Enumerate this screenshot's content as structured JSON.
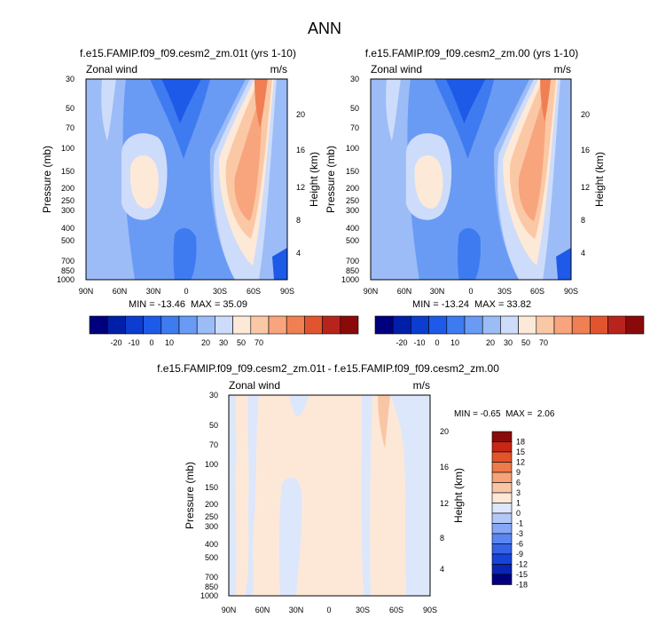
{
  "page_title": "ANN",
  "units": "m/s",
  "variable": "Zonal wind",
  "colors": {
    "abs_levels": [
      "#00007f",
      "#001fa8",
      "#0a3dd0",
      "#1e5ae8",
      "#3f7bf0",
      "#6a9bf4",
      "#9cbcf7",
      "#cddcfa",
      "#fde9d8",
      "#fbc8a6",
      "#f8a57e",
      "#f07f54",
      "#e0552f",
      "#b8241c",
      "#8a0a0a"
    ],
    "diff_levels": [
      "#00007f",
      "#0a24b5",
      "#1744d8",
      "#3563e8",
      "#5a86f0",
      "#86a8f4",
      "#b3c8f7",
      "#dce7fb",
      "#fde8d8",
      "#f9c6a5",
      "#f5a377",
      "#ef7a4c",
      "#e4532a",
      "#c72714",
      "#8a0a0a"
    ]
  },
  "chart_data": [
    {
      "type": "contour",
      "title": "f.e15.FAMIP.f09_f09.cesm2_zm.01t (yrs 1-10)",
      "left_label": "Zonal wind",
      "right_label": "m/s",
      "ylabel": "Pressure (mb)",
      "ylabel_right": "Height (km)",
      "xticks": [
        "90N",
        "60N",
        "30N",
        "0",
        "30S",
        "60S",
        "90S"
      ],
      "yticks": [
        "30",
        "50",
        "70",
        "100",
        "150",
        "200",
        "250",
        "300",
        "400",
        "500",
        "700",
        "850",
        "1000"
      ],
      "yticks_right": [
        "20",
        "16",
        "12",
        "8",
        "4"
      ],
      "stats": "MIN = -13.46  MAX = 35.09",
      "colorbar_labels": [
        "-20",
        "-10",
        "0",
        "10",
        "20",
        "30",
        "50",
        "70"
      ]
    },
    {
      "type": "contour",
      "title": "f.e15.FAMIP.f09_f09.cesm2_zm.00 (yrs 1-10)",
      "left_label": "Zonal wind",
      "right_label": "m/s",
      "ylabel": "Pressure (mb)",
      "ylabel_right": "Height (km)",
      "xticks": [
        "90N",
        "60N",
        "30N",
        "0",
        "30S",
        "60S",
        "90S"
      ],
      "yticks": [
        "30",
        "50",
        "70",
        "100",
        "150",
        "200",
        "250",
        "300",
        "400",
        "500",
        "700",
        "850",
        "1000"
      ],
      "yticks_right": [
        "20",
        "16",
        "12",
        "8",
        "4"
      ],
      "stats": "MIN = -13.24  MAX = 33.82",
      "colorbar_labels": [
        "-20",
        "-10",
        "0",
        "10",
        "20",
        "30",
        "50",
        "70"
      ]
    },
    {
      "type": "contour",
      "title": "f.e15.FAMIP.f09_f09.cesm2_zm.01t - f.e15.FAMIP.f09_f09.cesm2_zm.00",
      "left_label": "Zonal wind",
      "right_label": "m/s",
      "ylabel": "Pressure (mb)",
      "ylabel_right": "Height (km)",
      "xticks": [
        "90N",
        "60N",
        "30N",
        "0",
        "30S",
        "60S",
        "90S"
      ],
      "yticks": [
        "30",
        "50",
        "70",
        "100",
        "150",
        "200",
        "250",
        "300",
        "400",
        "500",
        "700",
        "850",
        "1000"
      ],
      "yticks_right": [
        "20",
        "16",
        "12",
        "8",
        "4"
      ],
      "stats": "MIN = -0.65  MAX =  2.06",
      "colorbar_labels": [
        "18",
        "15",
        "12",
        "9",
        "6",
        "3",
        "1",
        "0",
        "-1",
        "-3",
        "-6",
        "-9",
        "-12",
        "-15",
        "-18"
      ]
    }
  ]
}
